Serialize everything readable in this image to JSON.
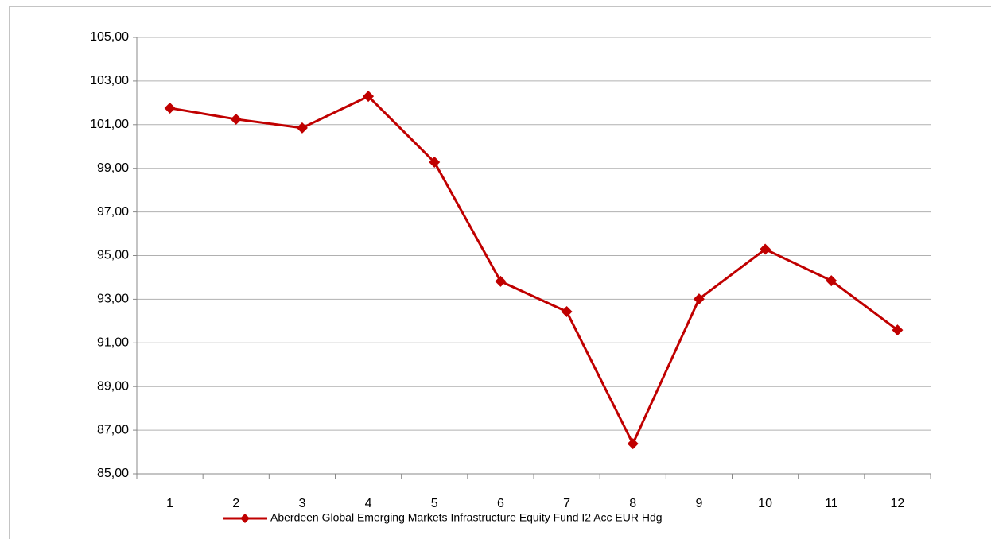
{
  "chart_data": {
    "type": "line",
    "categories": [
      "1",
      "2",
      "3",
      "4",
      "5",
      "6",
      "7",
      "8",
      "9",
      "10",
      "11",
      "12"
    ],
    "series": [
      {
        "name": "Aberdeen Global Emerging Markets Infrastructure Equity Fund I2 Acc EUR Hdg",
        "color": "#c00000",
        "values": [
          101.76,
          101.25,
          100.85,
          102.3,
          99.28,
          93.82,
          92.43,
          86.38,
          93.01,
          95.29,
          93.85,
          91.59
        ]
      }
    ],
    "ylim": [
      85,
      105
    ],
    "yticks": [
      {
        "value": 85,
        "label": "85,00"
      },
      {
        "value": 87,
        "label": "87,00"
      },
      {
        "value": 89,
        "label": "89,00"
      },
      {
        "value": 91,
        "label": "91,00"
      },
      {
        "value": 93,
        "label": "93,00"
      },
      {
        "value": 95,
        "label": "95,00"
      },
      {
        "value": 97,
        "label": "97,00"
      },
      {
        "value": 99,
        "label": "99,00"
      },
      {
        "value": 101,
        "label": "101,00"
      },
      {
        "value": 103,
        "label": "103,00"
      },
      {
        "value": 105,
        "label": "105,00"
      }
    ],
    "grid": true,
    "legend": "bottom"
  }
}
